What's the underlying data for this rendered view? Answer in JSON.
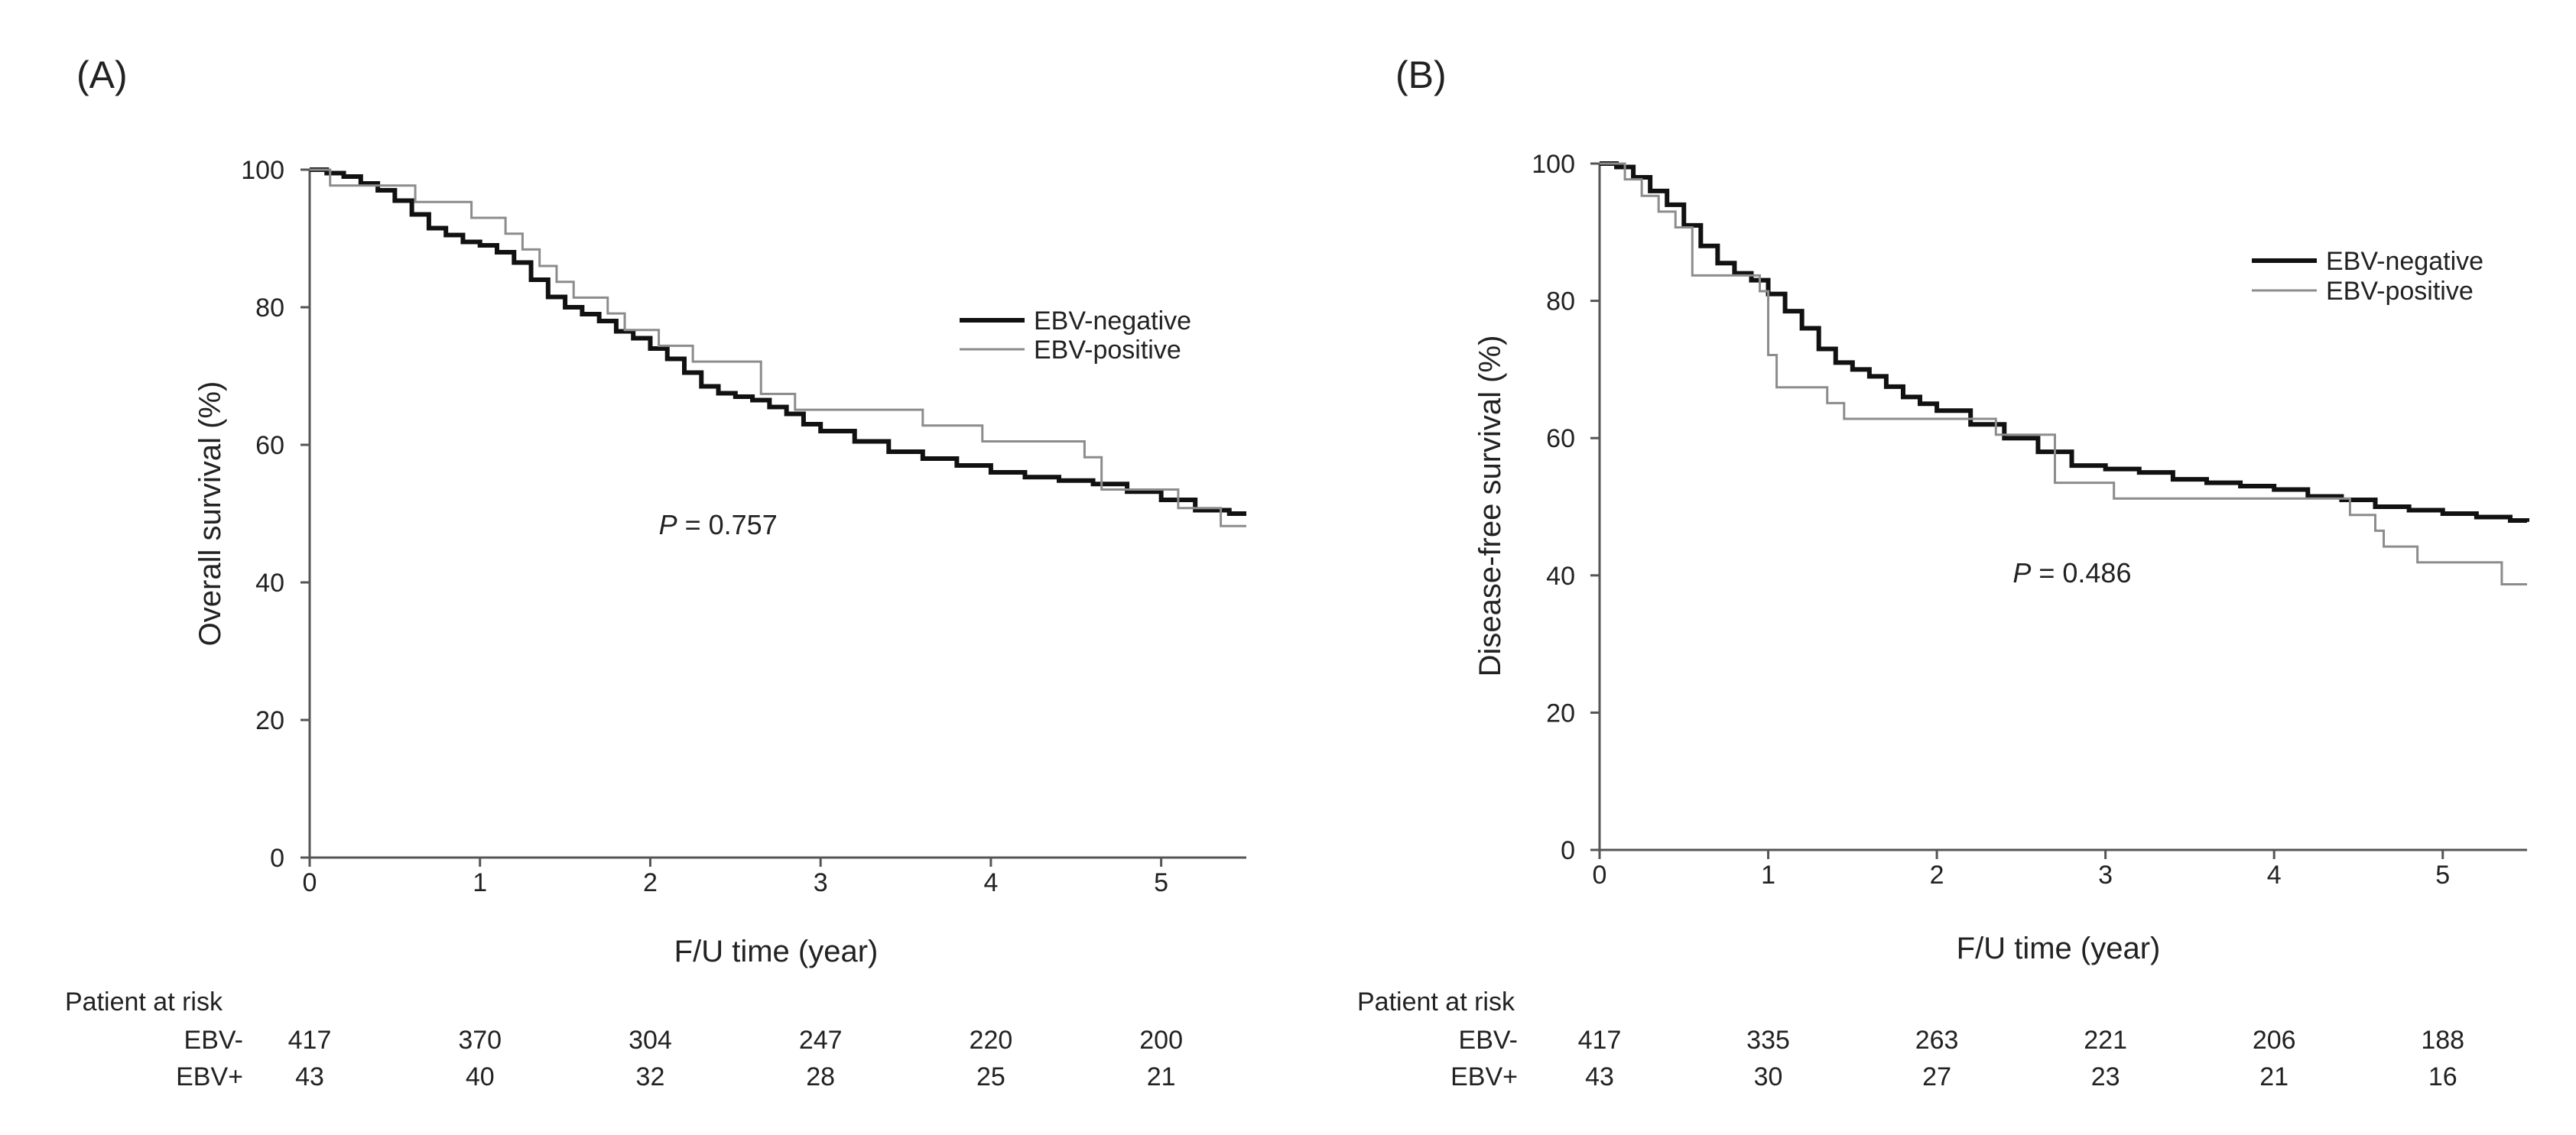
{
  "chart_data": [
    {
      "type": "line",
      "step": true,
      "panel_label": "(A)",
      "xlabel": "F/U time (year)",
      "ylabel": "Overall survival (%)",
      "xlim": [
        0,
        5.5
      ],
      "ylim": [
        0,
        100
      ],
      "x_ticks": [
        "0",
        "1",
        "2",
        "3",
        "4",
        "5"
      ],
      "y_ticks": [
        "0",
        "20",
        "40",
        "60",
        "80",
        "100"
      ],
      "legend_position": "right",
      "annotation": {
        "prefix": "P",
        "text": " = 0.757",
        "x": 2.05,
        "y": 47
      },
      "series": [
        {
          "name": "EBV-negative",
          "color": "#111111",
          "x": [
            0,
            0.1,
            0.2,
            0.3,
            0.4,
            0.5,
            0.6,
            0.7,
            0.8,
            0.9,
            1.0,
            1.1,
            1.2,
            1.3,
            1.4,
            1.5,
            1.6,
            1.7,
            1.8,
            1.9,
            2.0,
            2.1,
            2.2,
            2.3,
            2.4,
            2.5,
            2.6,
            2.7,
            2.8,
            2.9,
            3.0,
            3.2,
            3.4,
            3.6,
            3.8,
            4.0,
            4.2,
            4.4,
            4.6,
            4.8,
            5.0,
            5.2,
            5.4,
            5.5
          ],
          "y": [
            100,
            99.5,
            99,
            98,
            97,
            95.5,
            93.5,
            91.5,
            90.5,
            89.5,
            89,
            88,
            86.5,
            84,
            81.5,
            80,
            79,
            78,
            76.5,
            75.5,
            74,
            72.5,
            70.5,
            68.5,
            67.5,
            67,
            66.5,
            65.5,
            64.5,
            63,
            62,
            60.5,
            59,
            58,
            57,
            56,
            55.3,
            54.8,
            54.3,
            53.2,
            52,
            50.5,
            50,
            50
          ]
        },
        {
          "name": "EBV-positive",
          "color": "#8c8c8c",
          "x": [
            0,
            0.12,
            0.62,
            0.95,
            1.15,
            1.25,
            1.35,
            1.45,
            1.55,
            1.75,
            1.85,
            2.05,
            2.25,
            2.65,
            2.85,
            3.6,
            3.95,
            4.55,
            4.65,
            5.1,
            5.35
          ],
          "y": [
            100,
            97.7,
            95.3,
            93,
            90.7,
            88.4,
            86,
            83.7,
            81.4,
            79.1,
            76.7,
            74.4,
            72.1,
            67.4,
            65.1,
            62.8,
            60.5,
            58.2,
            53.5,
            50.8,
            48.2
          ]
        }
      ],
      "risk_table": {
        "title": "Patient at risk",
        "rows": [
          {
            "label": "EBV-",
            "values": [
              "417",
              "370",
              "304",
              "247",
              "220",
              "200"
            ]
          },
          {
            "label": "EBV+",
            "values": [
              "43",
              "40",
              "32",
              "28",
              "25",
              "21"
            ]
          }
        ]
      }
    },
    {
      "type": "line",
      "step": true,
      "panel_label": "(B)",
      "xlabel": "F/U time (year)",
      "ylabel": "Disease-free survival (%)",
      "xlim": [
        0,
        5.5
      ],
      "ylim": [
        0,
        100
      ],
      "x_ticks": [
        "0",
        "1",
        "2",
        "3",
        "4",
        "5"
      ],
      "y_ticks": [
        "0",
        "20",
        "40",
        "60",
        "80",
        "100"
      ],
      "legend_position": "top-right",
      "annotation": {
        "prefix": "P",
        "text": " = 0.486",
        "x": 2.45,
        "y": 39
      },
      "series": [
        {
          "name": "EBV-negative",
          "color": "#111111",
          "x": [
            0,
            0.1,
            0.2,
            0.3,
            0.4,
            0.5,
            0.6,
            0.7,
            0.8,
            0.9,
            1.0,
            1.1,
            1.2,
            1.3,
            1.4,
            1.5,
            1.6,
            1.7,
            1.8,
            1.9,
            2.0,
            2.2,
            2.4,
            2.6,
            2.8,
            3.0,
            3.2,
            3.4,
            3.6,
            3.8,
            4.0,
            4.2,
            4.4,
            4.6,
            4.8,
            5.0,
            5.2,
            5.4,
            5.5
          ],
          "y": [
            100,
            99.5,
            98,
            96,
            94,
            91,
            88,
            85.5,
            84,
            83,
            81,
            78.5,
            76,
            73,
            71,
            70,
            69,
            67.5,
            66,
            65,
            64,
            62,
            60,
            58,
            56,
            55.5,
            55,
            54,
            53.5,
            53,
            52.5,
            51.5,
            51,
            50,
            49.5,
            49,
            48.5,
            48,
            47.8
          ]
        },
        {
          "name": "EBV-positive",
          "color": "#8c8c8c",
          "x": [
            0,
            0.15,
            0.25,
            0.35,
            0.45,
            0.55,
            0.95,
            1.0,
            1.05,
            1.35,
            1.45,
            2.35,
            2.7,
            3.05,
            4.45,
            4.6,
            4.65,
            4.85,
            5.35
          ],
          "y": [
            100,
            97.7,
            95.3,
            93,
            90.7,
            83.7,
            81.4,
            72.1,
            67.4,
            65.1,
            62.8,
            60.5,
            53.5,
            51.2,
            48.8,
            46.5,
            44.2,
            41.9,
            38.7
          ]
        }
      ],
      "risk_table": {
        "title": "Patient at risk",
        "rows": [
          {
            "label": "EBV-",
            "values": [
              "417",
              "335",
              "263",
              "221",
              "206",
              "188"
            ]
          },
          {
            "label": "EBV+",
            "values": [
              "43",
              "30",
              "27",
              "23",
              "21",
              "16"
            ]
          }
        ]
      }
    }
  ]
}
